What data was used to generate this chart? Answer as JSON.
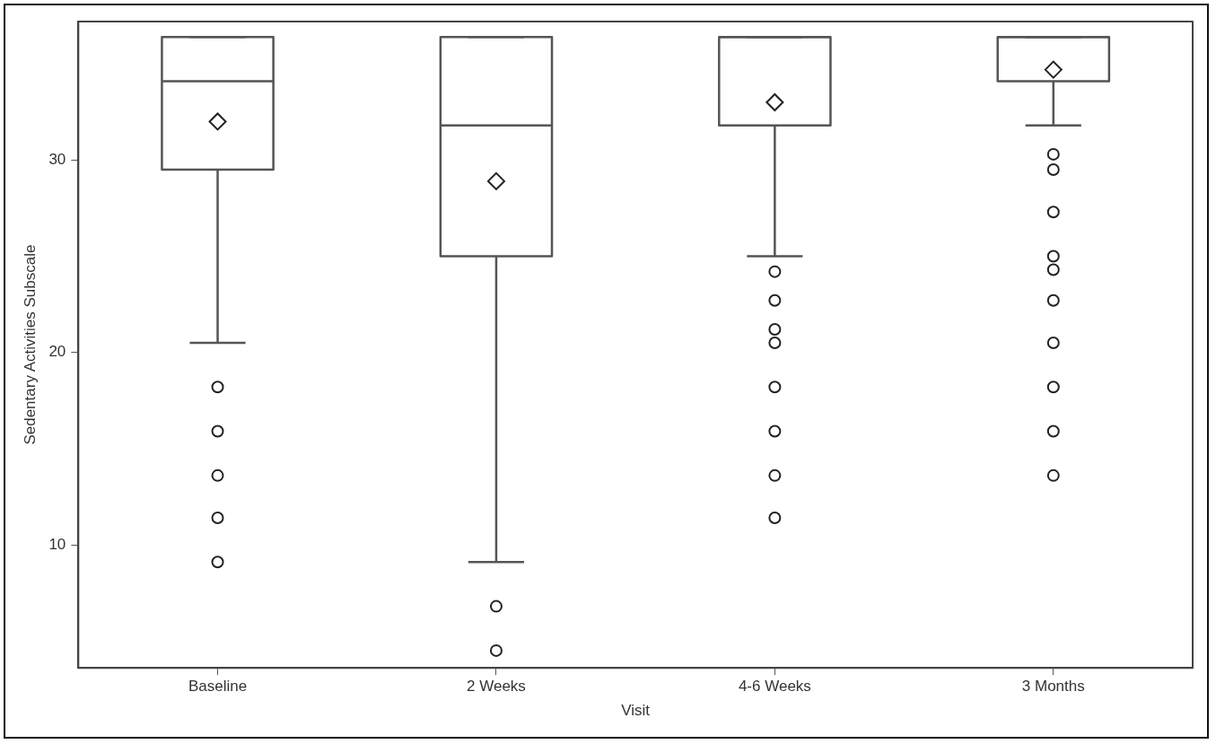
{
  "chart_data": {
    "type": "box",
    "xlabel": "Visit",
    "ylabel": "Sedentary Activities Subscale",
    "categories": [
      "Baseline",
      "2 Weeks",
      "4-6 Weeks",
      "3 Months"
    ],
    "boxes": [
      {
        "low": 20.5,
        "q1": 29.5,
        "median": 34.1,
        "q3": 36.4,
        "high": 36.4,
        "mean": 32.0,
        "outliers": [
          18.2,
          15.9,
          13.6,
          11.4,
          9.1
        ]
      },
      {
        "low": 9.1,
        "q1": 25.0,
        "median": 31.8,
        "q3": 36.4,
        "high": 36.4,
        "mean": 28.9,
        "outliers": [
          6.8,
          4.5
        ]
      },
      {
        "low": 25.0,
        "q1": 31.8,
        "median": 36.4,
        "q3": 36.4,
        "high": 36.4,
        "mean": 33.0,
        "outliers": [
          24.2,
          22.7,
          21.2,
          20.5,
          18.2,
          15.9,
          13.6,
          11.4
        ]
      },
      {
        "low": 31.8,
        "q1": 34.1,
        "median": 36.4,
        "q3": 36.4,
        "high": 36.4,
        "mean": 34.7,
        "outliers": [
          30.3,
          29.5,
          27.3,
          25.0,
          24.3,
          22.7,
          20.5,
          18.2,
          15.9,
          13.6
        ]
      }
    ],
    "color": "#555555",
    "ylim": [
      3.6,
      37.2
    ],
    "yticks": [
      10,
      20,
      30
    ],
    "grid": false
  }
}
